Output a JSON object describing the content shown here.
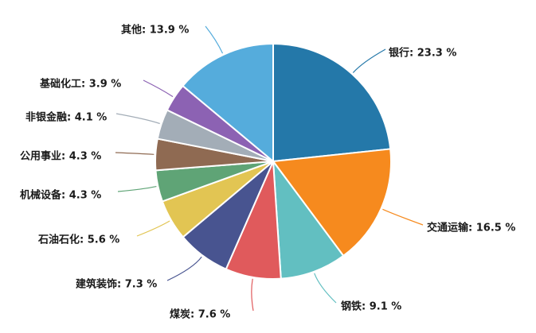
{
  "chart_data": {
    "type": "pie",
    "title": "",
    "slices": [
      {
        "label": "银行",
        "value": 23.3,
        "text": "银行: 23.3 %",
        "color": "#2478a9"
      },
      {
        "label": "交通运输",
        "value": 16.5,
        "text": "交通运输: 16.5 %",
        "color": "#f68a1e"
      },
      {
        "label": "钢铁",
        "value": 9.1,
        "text": "钢铁: 9.1 %",
        "color": "#62bfc1"
      },
      {
        "label": "煤炭",
        "value": 7.6,
        "text": "煤炭: 7.6 %",
        "color": "#e05a5c"
      },
      {
        "label": "建筑装饰",
        "value": 7.3,
        "text": "建筑装饰: 7.3 %",
        "color": "#485490"
      },
      {
        "label": "石油石化",
        "value": 5.6,
        "text": "石油石化: 5.6 %",
        "color": "#e2c553"
      },
      {
        "label": "机械设备",
        "value": 4.3,
        "text": "机械设备: 4.3 %",
        "color": "#5fa476"
      },
      {
        "label": "公用事业",
        "value": 4.3,
        "text": "公用事业: 4.3 %",
        "color": "#8f6a52"
      },
      {
        "label": "非银金融",
        "value": 4.1,
        "text": "非银金融: 4.1 %",
        "color": "#a3adb7"
      },
      {
        "label": "基础化工",
        "value": 3.9,
        "text": "基础化工: 3.9 %",
        "color": "#8c62b3"
      },
      {
        "label": "其他",
        "value": 13.9,
        "text": "其他: 13.9 %",
        "color": "#55acdc"
      }
    ]
  }
}
